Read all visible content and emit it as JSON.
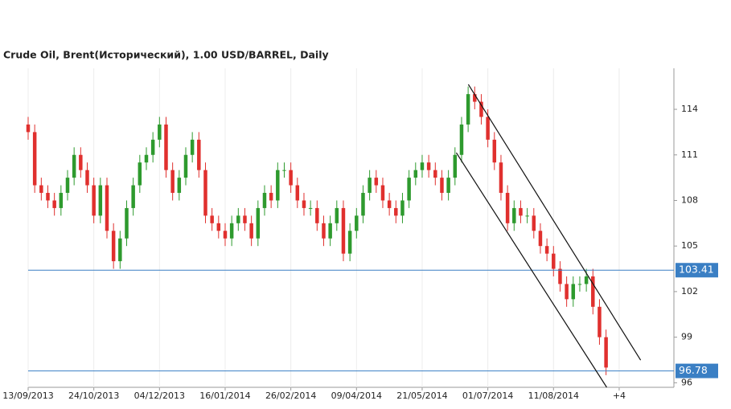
{
  "chart_data": {
    "type": "candlestick",
    "title": "Crude Oil, Brent(Исторический), 1.00 USD/BARREL, Daily",
    "up_color": "#2e9a2e",
    "down_color": "#e0302e",
    "level_color": "#3a7fc4",
    "channel_color": "#111111",
    "xlim": [
      0,
      295
    ],
    "ylim": [
      95.7,
      116.7
    ],
    "xticks": [
      {
        "value": 0,
        "label": "13/09/2013"
      },
      {
        "value": 30,
        "label": "24/10/2013"
      },
      {
        "value": 60,
        "label": "04/12/2013"
      },
      {
        "value": 90,
        "label": "16/01/2014"
      },
      {
        "value": 120,
        "label": "26/02/2014"
      },
      {
        "value": 150,
        "label": "09/04/2014"
      },
      {
        "value": 180,
        "label": "21/05/2014"
      },
      {
        "value": 210,
        "label": "01/07/2014"
      },
      {
        "value": 240,
        "label": "11/08/2014"
      },
      {
        "value": 270,
        "label": "+4"
      }
    ],
    "yticks": [
      96,
      99,
      102,
      105,
      108,
      111,
      114
    ],
    "grid": true,
    "x": [
      0,
      3,
      6,
      9,
      12,
      15,
      18,
      21,
      24,
      27,
      30,
      33,
      36,
      39,
      42,
      45,
      48,
      51,
      54,
      57,
      60,
      63,
      66,
      69,
      72,
      75,
      78,
      81,
      84,
      87,
      90,
      93,
      96,
      99,
      102,
      105,
      108,
      111,
      114,
      117,
      120,
      123,
      126,
      129,
      132,
      135,
      138,
      141,
      144,
      147,
      150,
      153,
      156,
      159,
      162,
      165,
      168,
      171,
      174,
      177,
      180,
      183,
      186,
      189,
      192,
      195,
      198,
      201,
      204,
      207,
      210,
      213,
      216,
      219,
      222,
      225,
      228,
      231,
      234,
      237,
      240,
      243,
      246,
      249,
      252,
      255,
      258,
      261,
      264
    ],
    "open": [
      113,
      112.5,
      109,
      108.5,
      108,
      107.5,
      108.5,
      109.5,
      111,
      110,
      109,
      107,
      109,
      106,
      104,
      105.5,
      107.5,
      109,
      110.5,
      111,
      112,
      113,
      110,
      108.5,
      109.5,
      111,
      112,
      110,
      107,
      106.5,
      106,
      105.5,
      106.5,
      107,
      106.5,
      105.5,
      107.5,
      108.5,
      108,
      110,
      110,
      109,
      108,
      107.5,
      107.5,
      106.5,
      105.5,
      106.5,
      107.5,
      104.5,
      106,
      107,
      108.5,
      109.5,
      109,
      108,
      107.5,
      107,
      108,
      109.5,
      110,
      110.5,
      110,
      109.5,
      108.5,
      109.5,
      111,
      113,
      115,
      114.5,
      113.5,
      112,
      110.5,
      108.5,
      106.5,
      107.5,
      107,
      107,
      106,
      105,
      104.5,
      103.5,
      102.5,
      101.5,
      102.5,
      102.5,
      103,
      101,
      99
    ],
    "high": [
      113.5,
      113,
      109.5,
      109,
      108.5,
      109,
      110,
      111.5,
      111.5,
      110.5,
      109.5,
      109.5,
      109.5,
      106.5,
      106,
      108,
      109.5,
      111,
      111.5,
      112.5,
      113.5,
      113.5,
      110.5,
      110,
      111.5,
      112.5,
      112.5,
      110.5,
      107.5,
      107,
      106.5,
      107,
      107.5,
      107.5,
      107,
      108,
      109,
      109,
      110.5,
      110.5,
      110.5,
      109.5,
      108.5,
      108,
      108,
      107,
      107,
      108,
      108,
      106.5,
      107.5,
      109,
      110,
      110,
      109.5,
      108.5,
      108,
      108.5,
      110,
      110.5,
      111,
      111,
      110.5,
      110,
      110,
      111.5,
      113.5,
      115.5,
      115.5,
      115,
      114,
      112.5,
      111,
      109,
      108,
      108,
      107.5,
      107.5,
      106.5,
      105.5,
      105,
      104,
      103,
      103,
      103,
      103.5,
      103.5,
      101.5,
      99.5
    ],
    "low": [
      112,
      108.5,
      108,
      107.5,
      107,
      107,
      108,
      109,
      109.5,
      108.5,
      106.5,
      106.5,
      105.5,
      103.5,
      103.5,
      105,
      107,
      108.5,
      110,
      110.5,
      111.5,
      109.5,
      108,
      108,
      109,
      110.5,
      109.5,
      106.5,
      106,
      105.5,
      105,
      105,
      106,
      106,
      105,
      105,
      107,
      107.5,
      107.5,
      109.5,
      108.5,
      107.5,
      107,
      107,
      106,
      105,
      105,
      106,
      104,
      104,
      105.5,
      106.5,
      108,
      108.5,
      107.5,
      107,
      106.5,
      106.5,
      107.5,
      109,
      109.5,
      109.5,
      109,
      108,
      108,
      109,
      110.5,
      112.5,
      114,
      113,
      111.5,
      110,
      108,
      106,
      106,
      106.5,
      106.5,
      105.5,
      104.5,
      104,
      103,
      102,
      101,
      101,
      102,
      102,
      100.5,
      98.5,
      96.5
    ],
    "close": [
      112.5,
      109,
      108.5,
      108,
      107.5,
      108.5,
      109.5,
      111,
      110,
      109,
      107,
      109,
      106,
      104,
      105.5,
      107.5,
      109,
      110.5,
      111,
      112,
      113,
      110,
      108.5,
      109.5,
      111,
      112,
      110,
      107,
      106.5,
      106,
      105.5,
      106.5,
      107,
      106.5,
      105.5,
      107.5,
      108.5,
      108,
      110,
      110,
      109,
      108,
      107.5,
      107.5,
      106.5,
      105.5,
      106.5,
      107.5,
      104.5,
      106,
      107,
      108.5,
      109.5,
      109,
      108,
      107.5,
      107,
      108,
      109.5,
      110,
      110.5,
      110,
      109.5,
      108.5,
      109.5,
      111,
      113,
      115,
      114.5,
      113.5,
      112,
      110.5,
      108.5,
      106.5,
      107.5,
      107,
      107,
      106,
      105,
      104.5,
      103.5,
      102.5,
      101.5,
      102.5,
      102.5,
      103,
      101,
      99,
      97
    ],
    "levels": [
      103.41,
      96.78
    ],
    "channels": [
      {
        "x": [
          201.1,
          279.8
        ],
        "y": [
          115.64,
          97.49
        ]
      },
      {
        "x": [
          195.6,
          264.3
        ],
        "y": [
          111.14,
          95.7
        ]
      }
    ]
  }
}
